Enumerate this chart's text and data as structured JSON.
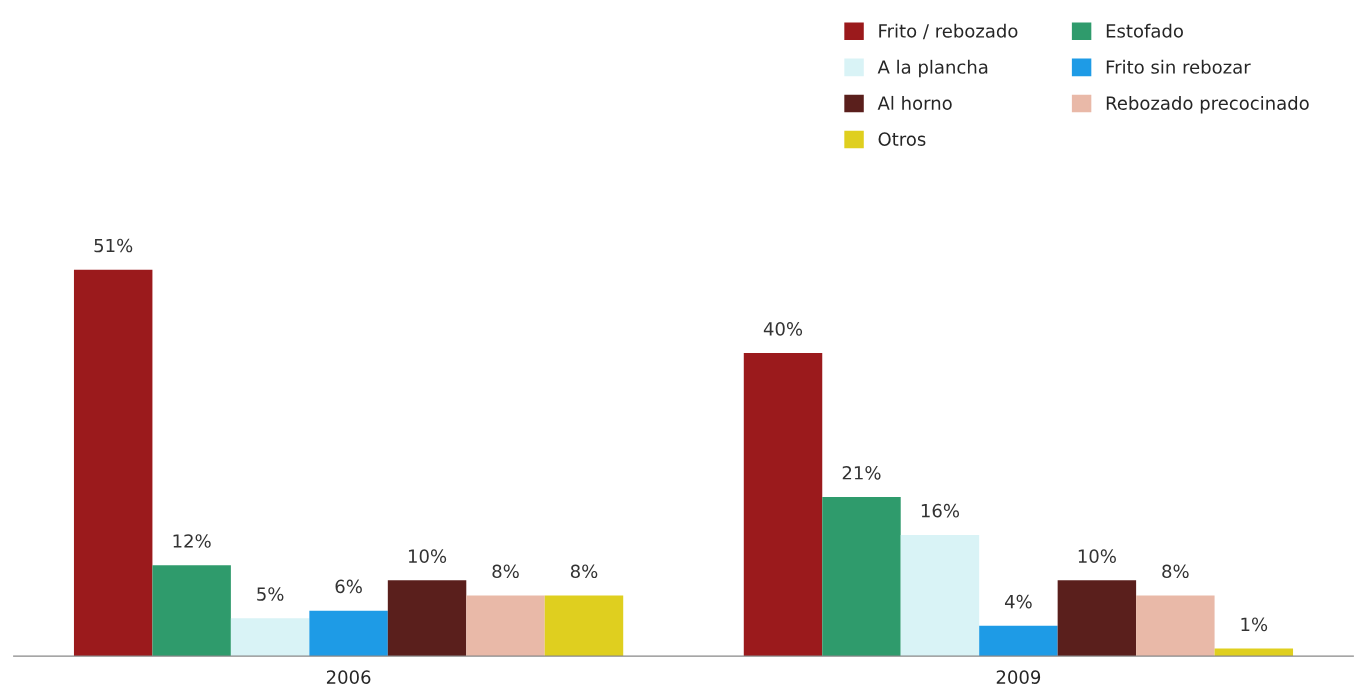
{
  "chart_data": {
    "type": "bar",
    "categories": [
      "2006",
      "2009"
    ],
    "series": [
      {
        "name": "Frito / rebozado",
        "color": "#9b1a1c",
        "values": [
          51,
          40
        ],
        "value_labels": [
          "51%",
          "40%"
        ]
      },
      {
        "name": "Estofado",
        "color": "#2f9b6c",
        "values": [
          12,
          21
        ],
        "value_labels": [
          "12%",
          "21%"
        ]
      },
      {
        "name": "A la plancha",
        "color": "#d9f3f6",
        "values": [
          5,
          16
        ],
        "value_labels": [
          "5%",
          "16%"
        ]
      },
      {
        "name": "Frito sin rebozar",
        "color": "#1e9be6",
        "values": [
          6,
          4
        ],
        "value_labels": [
          "6%",
          "4%"
        ]
      },
      {
        "name": "Al horno",
        "color": "#5a1f1c",
        "values": [
          10,
          10
        ],
        "value_labels": [
          "10%",
          "10%"
        ]
      },
      {
        "name": "Rebozado precocinado",
        "color": "#e9b9a8",
        "values": [
          8,
          8
        ],
        "value_labels": [
          "8%",
          "8%"
        ]
      },
      {
        "name": "Otros",
        "color": "#dfcf1f",
        "values": [
          8,
          1
        ],
        "value_labels": [
          "8%",
          "1%"
        ]
      }
    ],
    "legend": "top right",
    "grid": false
  }
}
